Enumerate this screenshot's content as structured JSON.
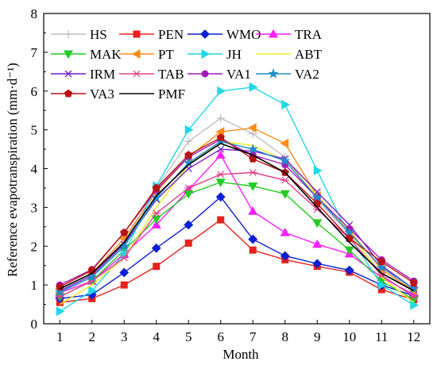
{
  "chart_data": {
    "type": "line",
    "xlabel": "Month",
    "ylabel": "Reference evapotranspiration (mm·d⁻¹)",
    "x": [
      1,
      2,
      3,
      4,
      5,
      6,
      7,
      8,
      9,
      10,
      11,
      12
    ],
    "xlim": [
      0.5,
      12.5
    ],
    "ylim": [
      0,
      8
    ],
    "yticks": [
      0,
      1,
      2,
      3,
      4,
      5,
      6,
      7,
      8
    ],
    "grid": false,
    "legend_position": "top",
    "series": [
      {
        "name": "HS",
        "color": "#c0c0c0",
        "marker": "plus",
        "values": [
          0.8,
          1.2,
          2.1,
          3.5,
          4.7,
          5.3,
          4.9,
          4.3,
          3.2,
          2.3,
          1.3,
          0.9
        ]
      },
      {
        "name": "PEN",
        "color": "#e8211d",
        "marker": "square",
        "values": [
          0.55,
          0.65,
          1.0,
          1.48,
          2.08,
          2.68,
          1.9,
          1.65,
          1.48,
          1.33,
          0.88,
          0.62
        ]
      },
      {
        "name": "WMO",
        "color": "#0b1fd6",
        "marker": "diamond",
        "values": [
          0.65,
          0.75,
          1.32,
          1.95,
          2.55,
          3.27,
          2.18,
          1.75,
          1.55,
          1.38,
          1.0,
          0.72
        ]
      },
      {
        "name": "TRA",
        "color": "#ff1fff",
        "marker": "triangle-up",
        "values": [
          0.8,
          1.1,
          1.8,
          2.55,
          3.45,
          4.35,
          2.9,
          2.35,
          2.05,
          1.8,
          1.2,
          0.75
        ]
      },
      {
        "name": "MAK",
        "color": "#22cc22",
        "marker": "triangle-down",
        "values": [
          0.7,
          1.1,
          1.9,
          2.7,
          3.35,
          3.65,
          3.55,
          3.35,
          2.6,
          1.9,
          1.1,
          0.62
        ]
      },
      {
        "name": "PT",
        "color": "#ff8c1a",
        "marker": "triangle-left",
        "values": [
          0.9,
          1.3,
          2.2,
          3.4,
          4.3,
          4.95,
          5.05,
          4.65,
          3.3,
          2.4,
          1.4,
          0.85
        ]
      },
      {
        "name": "JH",
        "color": "#1fd8e8",
        "marker": "triangle-right",
        "values": [
          0.32,
          0.85,
          1.8,
          3.55,
          5.0,
          6.0,
          6.1,
          5.65,
          3.95,
          2.25,
          1.0,
          0.48
        ]
      },
      {
        "name": "ABT",
        "color": "#eeee22",
        "marker": "none",
        "values": [
          0.5,
          1.0,
          1.7,
          3.0,
          4.1,
          4.7,
          4.6,
          4.2,
          3.3,
          2.4,
          1.2,
          0.55
        ]
      },
      {
        "name": "IRM",
        "color": "#7a1fc8",
        "marker": "x",
        "values": [
          0.85,
          1.25,
          2.05,
          3.2,
          4.0,
          4.5,
          4.45,
          4.25,
          3.4,
          2.55,
          1.5,
          0.9
        ]
      },
      {
        "name": "TAB",
        "color": "#e0408a",
        "marker": "asterisk",
        "values": [
          0.7,
          1.1,
          1.7,
          2.85,
          3.5,
          3.85,
          3.9,
          3.7,
          2.95,
          2.2,
          1.25,
          0.7
        ]
      },
      {
        "name": "VA1",
        "color": "#a11ab8",
        "marker": "circle",
        "values": [
          1.0,
          1.4,
          2.35,
          3.45,
          4.3,
          4.75,
          4.35,
          4.1,
          3.25,
          2.45,
          1.65,
          1.1
        ]
      },
      {
        "name": "VA2",
        "color": "#1f8ccc",
        "marker": "star",
        "values": [
          0.82,
          1.2,
          2.0,
          3.25,
          4.15,
          4.7,
          4.5,
          4.2,
          3.25,
          2.35,
          1.45,
          0.9
        ]
      },
      {
        "name": "VA3",
        "color": "#b81414",
        "marker": "pentagon",
        "values": [
          0.95,
          1.38,
          2.35,
          3.5,
          4.35,
          4.8,
          4.25,
          3.9,
          3.1,
          2.2,
          1.6,
          1.05
        ]
      },
      {
        "name": "PMF",
        "color": "#000000",
        "marker": "none",
        "values": [
          0.9,
          1.3,
          2.1,
          3.3,
          4.1,
          4.65,
          4.35,
          3.9,
          3.0,
          2.1,
          1.3,
          0.85
        ]
      }
    ]
  }
}
